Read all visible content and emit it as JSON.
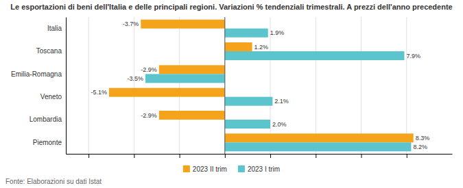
{
  "chart_data": {
    "type": "bar",
    "orientation": "horizontal",
    "title": "Le esportazioni di beni dell'Italia e delle principali regioni. Variazioni % tendenziali trimestrali. A prezzi dell'anno precedente",
    "categories": [
      "Italia",
      "Toscana",
      "Emilia-Romagna",
      "Veneto",
      "Lombardia",
      "Piemonte"
    ],
    "series": [
      {
        "name": "2023 II trim",
        "color": "#F5A31A",
        "values": [
          -3.7,
          1.2,
          -2.9,
          -5.1,
          -2.9,
          8.3
        ],
        "value_labels": [
          "-3.7%",
          "1.2%",
          "-2.9%",
          "-5.1%",
          "-2.9%",
          "8.3%"
        ]
      },
      {
        "name": "2023 I trim",
        "color": "#5BC4CC",
        "values": [
          1.9,
          7.9,
          -3.5,
          2.1,
          2.0,
          8.2
        ],
        "value_labels": [
          "1.9%",
          "7.9%",
          "-3.5%",
          "2.1%",
          "2.0%",
          "8.2%"
        ]
      }
    ],
    "xlim": [
      -7,
      10
    ],
    "xticks": [
      -6,
      -4,
      -2,
      0,
      2,
      4,
      6,
      8
    ],
    "grid": true,
    "tick_labels": "y",
    "data_labels": true,
    "legend": "bottom",
    "annotations": [
      "Fonte: Elaborazioni su dati Istat"
    ]
  }
}
